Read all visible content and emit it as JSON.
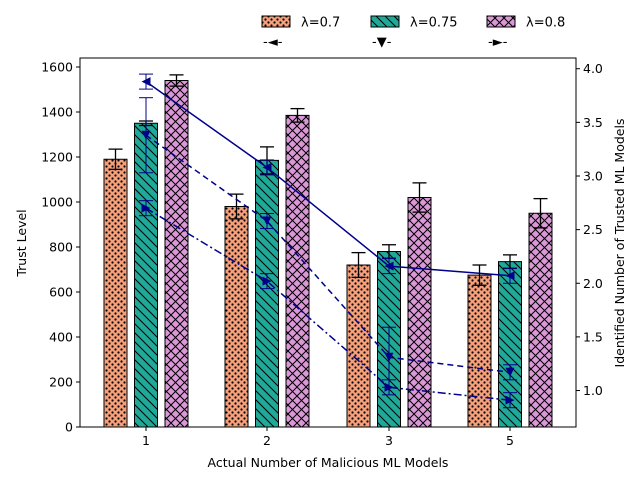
{
  "chart_data": {
    "type": "bar",
    "xlabel": "Actual Number of Malicious ML Models",
    "ylabel": "Trust Level",
    "y2label": "Identified Number of Trusted ML Models",
    "categories": [
      "1",
      "2",
      "3",
      "5"
    ],
    "ylim": [
      0,
      1640
    ],
    "yticks": [
      0,
      200,
      400,
      600,
      800,
      1000,
      1200,
      1400,
      1600
    ],
    "y2lim": [
      0.66,
      4.1
    ],
    "y2ticks": [
      1.0,
      1.5,
      2.0,
      2.5,
      3.0,
      3.5,
      4.0
    ],
    "y2tick_labels": [
      "1.0",
      "1.5",
      "2.0",
      "2.5",
      "3.0",
      "3.5",
      "4.0"
    ],
    "legend_position": "top (above plot)",
    "series": [
      {
        "name": "λ=0.7",
        "color": "#f4a07c",
        "hatch": "dots",
        "values": [
          1190,
          980,
          720,
          675
        ],
        "errors": [
          45,
          55,
          55,
          45
        ]
      },
      {
        "name": "λ=0.75",
        "color": "#20a898",
        "hatch": "diagonal",
        "values": [
          1350,
          1185,
          780,
          735
        ],
        "errors": [
          10,
          60,
          30,
          30
        ]
      },
      {
        "name": "λ=0.8",
        "color": "#da98d6",
        "hatch": "crosshatch",
        "values": [
          1540,
          1385,
          1020,
          950
        ],
        "errors": [
          25,
          30,
          65,
          65
        ]
      }
    ],
    "lines": [
      {
        "legend_label": "-◄-",
        "style": "solid",
        "marker": "triangle-left",
        "color": "#00008b",
        "values": [
          3.88,
          3.08,
          2.16,
          2.07
        ],
        "errors": [
          0.07,
          0.07,
          0.07,
          0.07
        ]
      },
      {
        "legend_label": "-▼-",
        "style": "dashed",
        "marker": "triangle-down",
        "color": "#00008b",
        "values": [
          3.38,
          2.58,
          1.31,
          1.17
        ],
        "errors": [
          0.35,
          0.07,
          0.28,
          0.07
        ]
      },
      {
        "legend_label": "-►-",
        "style": "dashdot",
        "marker": "triangle-right",
        "color": "#00008b",
        "values": [
          2.7,
          2.02,
          1.03,
          0.91
        ],
        "errors": [
          0.07,
          0.07,
          0.07,
          0.07
        ]
      }
    ]
  }
}
